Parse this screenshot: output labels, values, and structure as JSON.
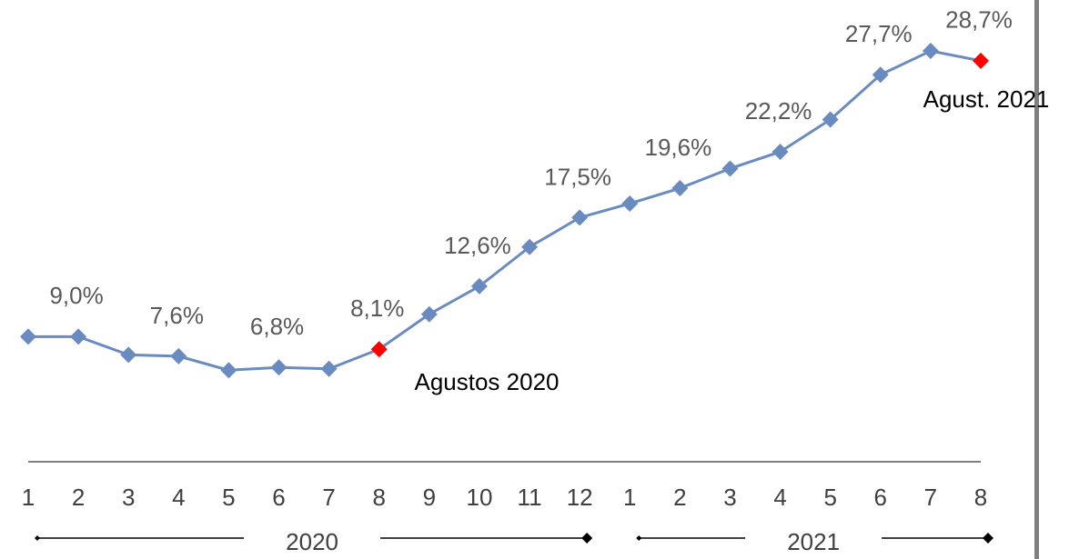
{
  "chart_data": {
    "type": "line",
    "categories": [
      "1",
      "2",
      "3",
      "4",
      "5",
      "6",
      "7",
      "8",
      "9",
      "10",
      "11",
      "12",
      "1",
      "2",
      "3",
      "4",
      "5",
      "6",
      "7",
      "8"
    ],
    "groups": [
      {
        "label": "2020",
        "count": 12
      },
      {
        "label": "2021",
        "count": 8
      }
    ],
    "series": [
      {
        "name": null,
        "color": "#6a8bc0",
        "marker_colors": [
          "#6a8bc0",
          "#6a8bc0",
          "#6a8bc0",
          "#6a8bc0",
          "#6a8bc0",
          "#6a8bc0",
          "#6a8bc0",
          "#ff0000",
          "#6a8bc0",
          "#6a8bc0",
          "#6a8bc0",
          "#6a8bc0",
          "#6a8bc0",
          "#6a8bc0",
          "#6a8bc0",
          "#6a8bc0",
          "#6a8bc0",
          "#6a8bc0",
          "#6a8bc0",
          "#ff0000"
        ],
        "values": [
          9.0,
          9.0,
          7.7,
          7.6,
          6.6,
          6.8,
          6.7,
          8.1,
          10.6,
          12.6,
          15.4,
          17.5,
          18.5,
          19.6,
          21.0,
          22.2,
          24.5,
          27.7,
          29.4,
          28.7
        ],
        "value_labels": [
          null,
          "9,0%",
          null,
          "7,6%",
          null,
          "6,8%",
          null,
          "8,1%",
          null,
          "12,6%",
          null,
          "17,5%",
          null,
          "19,6%",
          null,
          "22,2%",
          null,
          "27,7%",
          null,
          "28,7%"
        ]
      }
    ],
    "annotations": [
      "Agustos 2020",
      "Agust. 2021"
    ],
    "ylim": [
      0,
      32
    ]
  }
}
